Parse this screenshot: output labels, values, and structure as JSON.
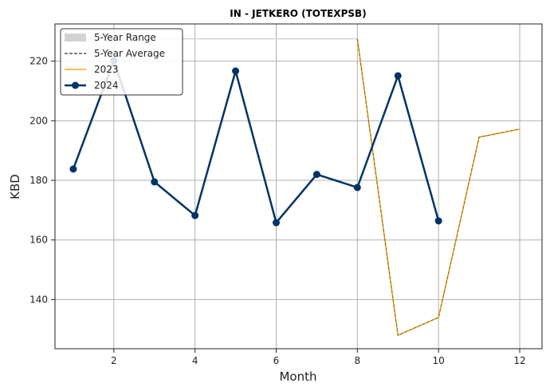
{
  "chart_data": {
    "type": "line",
    "title": "IN - JETKERO (TOTEXPSB)",
    "xlabel": "Month",
    "ylabel": "KBD",
    "xlim": [
      0.55,
      12.55
    ],
    "ylim": [
      123.5,
      232.5
    ],
    "xticks": [
      2,
      4,
      6,
      8,
      10,
      12
    ],
    "yticks": [
      140,
      160,
      180,
      200,
      220
    ],
    "grid": true,
    "legend_position": "top-left",
    "legend": [
      "5-Year Range",
      "5-Year Average",
      "2023",
      "2024"
    ],
    "series": [
      {
        "name": "5-Year Range",
        "kind": "band",
        "color": "#d3d3d3",
        "x": [
          1,
          2,
          3,
          4,
          5,
          6,
          7,
          8,
          9,
          10,
          11,
          12
        ],
        "low": [
          227.5,
          227.5,
          227.5,
          227.5,
          227.5,
          227.5,
          227.5,
          227.5,
          128,
          134,
          194.5,
          197.2
        ],
        "high": [
          227.5,
          227.5,
          227.5,
          227.5,
          227.5,
          227.5,
          227.5,
          227.5,
          128,
          134,
          194.5,
          197.2
        ]
      },
      {
        "name": "5-Year Average",
        "kind": "dashed",
        "color": "#000000",
        "x": [
          8,
          9,
          10,
          11,
          12
        ],
        "values": [
          227.5,
          128,
          134,
          194.5,
          197.2
        ]
      },
      {
        "name": "2023",
        "kind": "line",
        "color": "#f5a623",
        "x": [
          8,
          9,
          10,
          11,
          12
        ],
        "values": [
          227.5,
          128,
          134,
          194.5,
          197.2
        ]
      },
      {
        "name": "2024",
        "kind": "line-marker",
        "color": "#003366",
        "x": [
          1,
          2,
          3,
          4,
          5,
          6,
          7,
          8,
          9,
          10
        ],
        "values": [
          183.8,
          220.2,
          179.5,
          168.2,
          216.7,
          165.8,
          182.0,
          177.6,
          215.1,
          166.4
        ]
      }
    ]
  }
}
